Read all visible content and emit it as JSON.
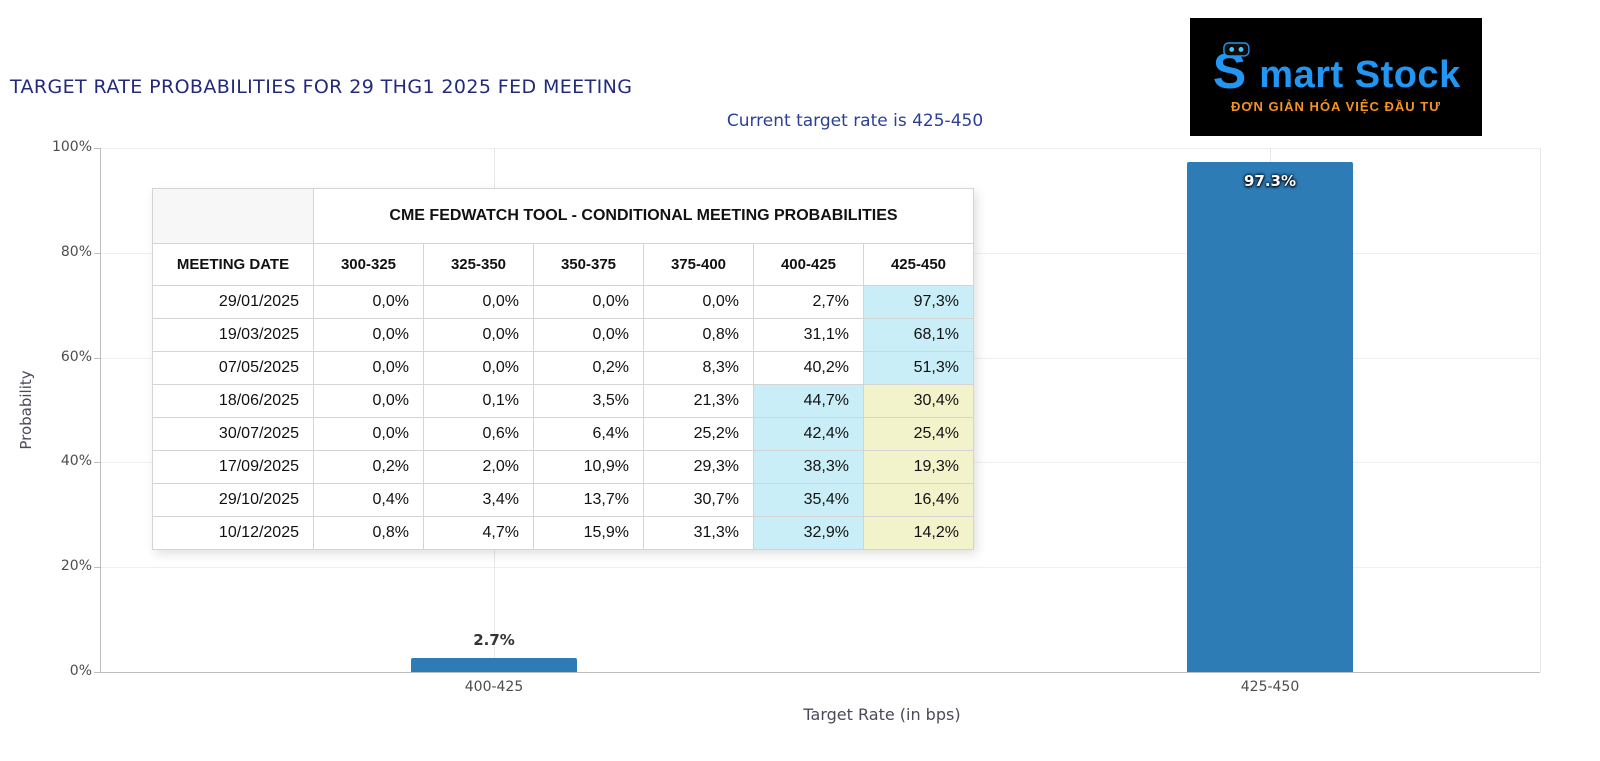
{
  "page": {
    "title": "TARGET RATE PROBABILITIES FOR 29 THG1 2025 FED MEETING",
    "subtitle": "Current target rate is 425-450"
  },
  "logo": {
    "brand_s": "S",
    "brand_rest": "mart Stock",
    "tagline": "ĐƠN GIẢN HÓA VIỆC ĐẦU TƯ"
  },
  "chart_data": {
    "type": "bar",
    "title": "TARGET RATE PROBABILITIES FOR 29 THG1 2025 FED MEETING",
    "subtitle": "Current target rate is 425-450",
    "xlabel": "Target Rate (in bps)",
    "ylabel": "Probability",
    "categories": [
      "400-425",
      "425-450"
    ],
    "values": [
      2.7,
      97.3
    ],
    "bar_labels": [
      "2.7%",
      "97.3%"
    ],
    "ylim": [
      0,
      100
    ],
    "ytick_labels": [
      "0%",
      "20%",
      "40%",
      "60%",
      "80%",
      "100%"
    ],
    "bar_color": "#2d7cb5",
    "grid": "light vertical category lines, faint horizontal tick lines",
    "legend": "none"
  },
  "table": {
    "header_title": "CME FEDWATCH TOOL - CONDITIONAL MEETING PROBABILITIES",
    "columns": [
      "MEETING DATE",
      "300-325",
      "325-350",
      "350-375",
      "375-400",
      "400-425",
      "425-450"
    ],
    "highlight_colors": {
      "cyan": "#c9eef7",
      "yellow": "#f2f3cb"
    },
    "rows": [
      {
        "date": "29/01/2025",
        "values": [
          "0,0%",
          "0,0%",
          "0,0%",
          "0,0%",
          "2,7%",
          "97,3%"
        ],
        "highlight": [
          "",
          "",
          "",
          "",
          "",
          "cyan"
        ]
      },
      {
        "date": "19/03/2025",
        "values": [
          "0,0%",
          "0,0%",
          "0,0%",
          "0,8%",
          "31,1%",
          "68,1%"
        ],
        "highlight": [
          "",
          "",
          "",
          "",
          "",
          "cyan"
        ]
      },
      {
        "date": "07/05/2025",
        "values": [
          "0,0%",
          "0,0%",
          "0,2%",
          "8,3%",
          "40,2%",
          "51,3%"
        ],
        "highlight": [
          "",
          "",
          "",
          "",
          "",
          "cyan"
        ]
      },
      {
        "date": "18/06/2025",
        "values": [
          "0,0%",
          "0,1%",
          "3,5%",
          "21,3%",
          "44,7%",
          "30,4%"
        ],
        "highlight": [
          "",
          "",
          "",
          "",
          "cyan",
          "yellow"
        ]
      },
      {
        "date": "30/07/2025",
        "values": [
          "0,0%",
          "0,6%",
          "6,4%",
          "25,2%",
          "42,4%",
          "25,4%"
        ],
        "highlight": [
          "",
          "",
          "",
          "",
          "cyan",
          "yellow"
        ]
      },
      {
        "date": "17/09/2025",
        "values": [
          "0,2%",
          "2,0%",
          "10,9%",
          "29,3%",
          "38,3%",
          "19,3%"
        ],
        "highlight": [
          "",
          "",
          "",
          "",
          "cyan",
          "yellow"
        ]
      },
      {
        "date": "29/10/2025",
        "values": [
          "0,4%",
          "3,4%",
          "13,7%",
          "30,7%",
          "35,4%",
          "16,4%"
        ],
        "highlight": [
          "",
          "",
          "",
          "",
          "cyan",
          "yellow"
        ]
      },
      {
        "date": "10/12/2025",
        "values": [
          "0,8%",
          "4,7%",
          "15,9%",
          "31,3%",
          "32,9%",
          "14,2%"
        ],
        "highlight": [
          "",
          "",
          "",
          "",
          "cyan",
          "yellow"
        ]
      }
    ]
  }
}
